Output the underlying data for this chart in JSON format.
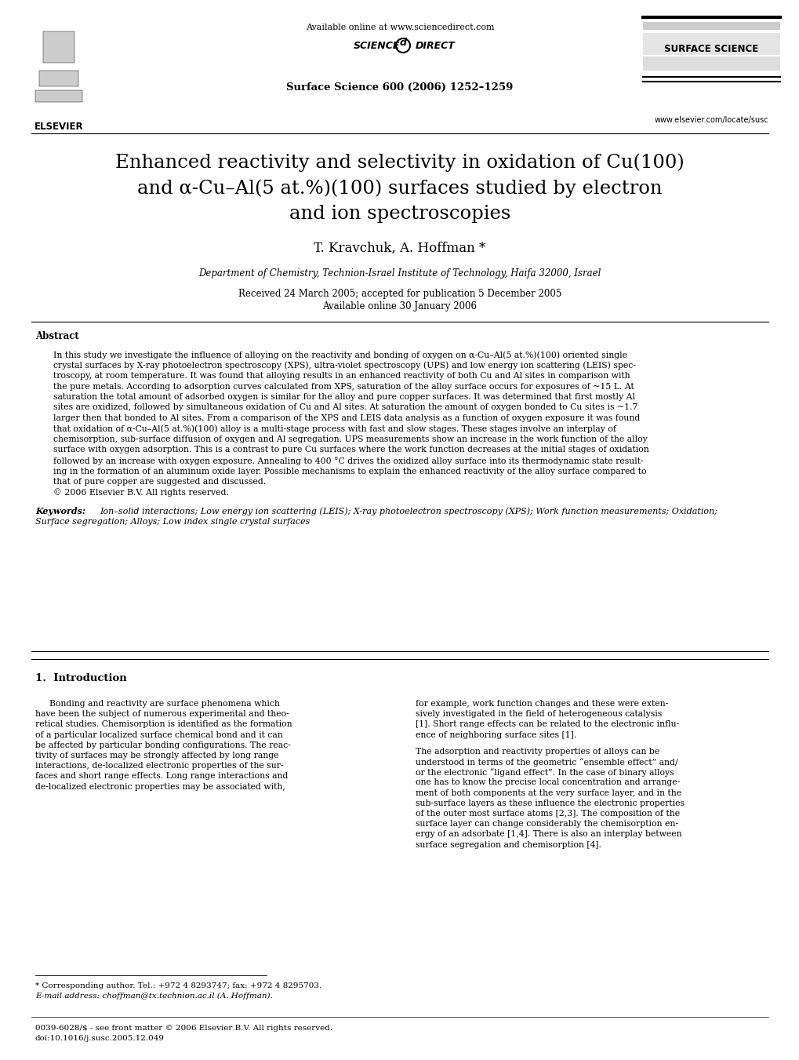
{
  "bg_color": "#ffffff",
  "header_available_online": "Available online at www.sciencedirect.com",
  "header_journal": "Surface Science 600 (2006) 1252–1259",
  "header_website": "www.elsevier.com/locate/susc",
  "header_journal_name": "SURFACE SCIENCE",
  "title_line1": "Enhanced reactivity and selectivity in oxidation of Cu(100)",
  "title_line2": "and α-Cu–Al(5 at.%)(100) surfaces studied by electron",
  "title_line3": "and ion spectroscopies",
  "authors": "T. Kravchuk, A. Hoffman *",
  "affiliation": "Department of Chemistry, Technion-Israel Institute of Technology, Haifa 32000, Israel",
  "received": "Received 24 March 2005; accepted for publication 5 December 2005",
  "available_online": "Available online 30 January 2006",
  "abstract_title": "Abstract",
  "abstract_text": "In this study we investigate the influence of alloying on the reactivity and bonding of oxygen on α-Cu–Al(5 at.%)(100) oriented single\ncrystal surfaces by X-ray photoelectron spectroscopy (XPS), ultra-violet spectroscopy (UPS) and low energy ion scattering (LEIS) spec-\ntroscopy, at room temperature. It was found that alloying results in an enhanced reactivity of both Cu and Al sites in comparison with\nthe pure metals. According to adsorption curves calculated from XPS, saturation of the alloy surface occurs for exposures of ~15 L. At\nsaturation the total amount of adsorbed oxygen is similar for the alloy and pure copper surfaces. It was determined that first mostly Al\nsites are oxidized, followed by simultaneous oxidation of Cu and Al sites. At saturation the amount of oxygen bonded to Cu sites is ~1.7\nlarger then that bonded to Al sites. From a comparison of the XPS and LEIS data analysis as a function of oxygen exposure it was found\nthat oxidation of α-Cu–Al(5 at.%)(100) alloy is a multi-stage process with fast and slow stages. These stages involve an interplay of\nchemisorption, sub-surface diffusion of oxygen and Al segregation. UPS measurements show an increase in the work function of the alloy\nsurface with oxygen adsorption. This is a contrast to pure Cu surfaces where the work function decreases at the initial stages of oxidation\nfollowed by an increase with oxygen exposure. Annealing to 400 °C drives the oxidized alloy surface into its thermodynamic state result-\ning in the formation of an aluminum oxide layer. Possible mechanisms to explain the enhanced reactivity of the alloy surface compared to\nthat of pure copper are suggested and discussed.\n© 2006 Elsevier B.V. All rights reserved.",
  "keywords_label": "Keywords: ",
  "keywords_line1": "Ion–solid interactions; Low energy ion scattering (LEIS); X-ray photoelectron spectroscopy (XPS); Work function measurements; Oxidation;",
  "keywords_line2": "Surface segregation; Alloys; Low index single crystal surfaces",
  "section1_title": "1.  Introduction",
  "section1_col1": [
    "Bonding and reactivity are surface phenomena which",
    "have been the subject of numerous experimental and theo-",
    "retical studies. Chemisorption is identified as the formation",
    "of a particular localized surface chemical bond and it can",
    "be affected by particular bonding configurations. The reac-",
    "tivity of surfaces may be strongly affected by long range",
    "interactions, de-localized electronic properties of the sur-",
    "faces and short range effects. Long range interactions and",
    "de-localized electronic properties may be associated with,"
  ],
  "section1_col2": [
    "for example, work function changes and these were exten-",
    "sively investigated in the field of heterogeneous catalysis",
    "[1]. Short range effects can be related to the electronic influ-",
    "ence of neighboring surface sites [1].",
    "",
    "The adsorption and reactivity properties of alloys can be",
    "understood in terms of the geometric “ensemble effect” and/",
    "or the electronic “ligand effect”. In the case of binary alloys",
    "one has to know the precise local concentration and arrange-",
    "ment of both components at the very surface layer, and in the",
    "sub-surface layers as these influence the electronic properties",
    "of the outer most surface atoms [2,3]. The composition of the",
    "surface layer can change considerably the chemisorption en-",
    "ergy of an adsorbate [1,4]. There is also an interplay between",
    "surface segregation and chemisorption [4]."
  ],
  "footnote_star": "* Corresponding author. Tel.: +972 4 8293747; fax: +972 4 8295703.",
  "footnote_email": "E-mail address: choffman@tx.technion.ac.il (A. Hoffman).",
  "footer_issn": "0039-6028/$ - see front matter © 2006 Elsevier B.V. All rights reserved.",
  "footer_doi": "doi:10.1016/j.susc.2005.12.049"
}
